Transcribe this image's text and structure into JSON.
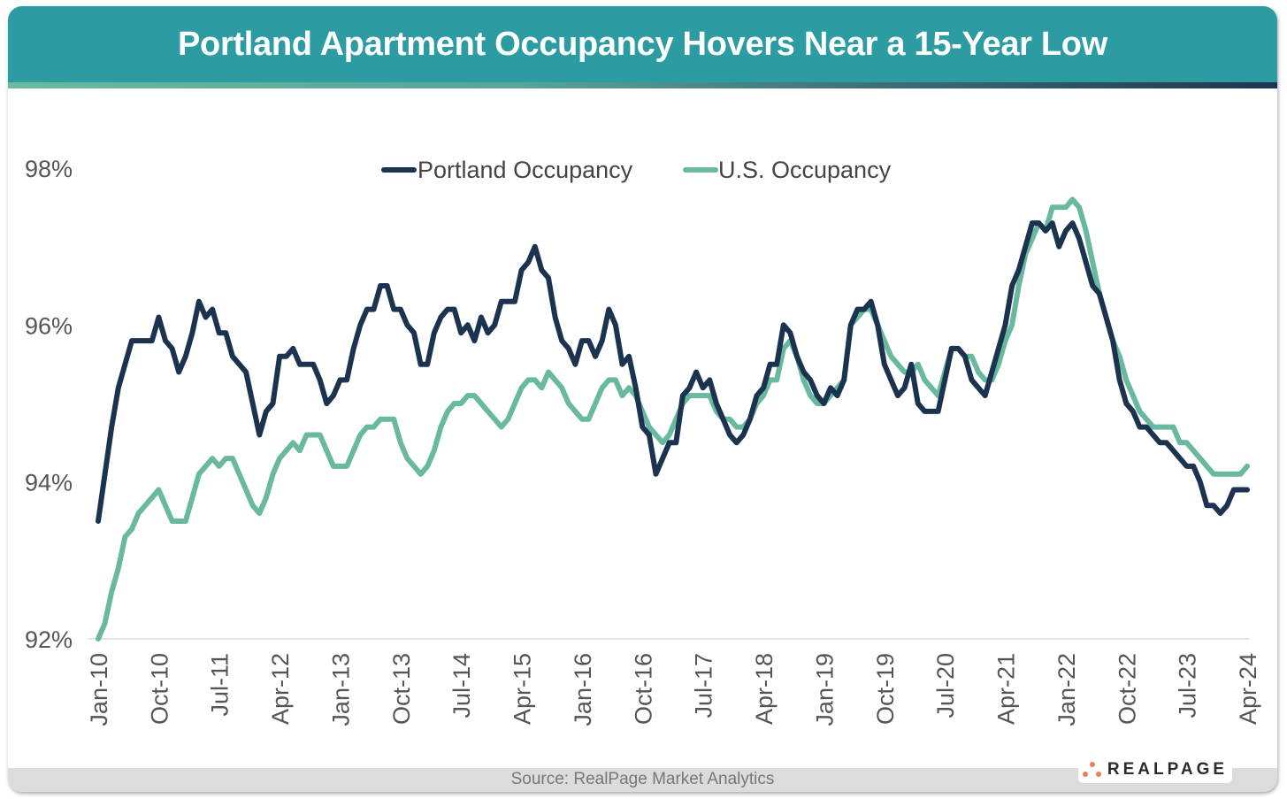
{
  "title": "Portland Apartment Occupancy Hovers Near a 15-Year Low",
  "source": "Source: RealPage Market Analytics",
  "logo_text": "REALPAGE",
  "colors": {
    "header": "#2c9ca2",
    "portland": "#1c3350",
    "us": "#68b9a0",
    "logo_accent": "#ee7d56"
  },
  "chart_data": {
    "type": "line",
    "title": "",
    "xlabel": "",
    "ylabel": "",
    "x_frequency": "monthly",
    "x_range": [
      "Jan-10",
      "Apr-24"
    ],
    "x_tick_labels": [
      "Jan-10",
      "Oct-10",
      "Jul-11",
      "Apr-12",
      "Jan-13",
      "Oct-13",
      "Jul-14",
      "Apr-15",
      "Jan-16",
      "Oct-16",
      "Jul-17",
      "Apr-18",
      "Jan-19",
      "Oct-19",
      "Jul-20",
      "Apr-21",
      "Jan-22",
      "Oct-22",
      "Jul-23",
      "Apr-24"
    ],
    "y_tick_labels": [
      "92%",
      "94%",
      "96%",
      "98%"
    ],
    "ylim": [
      92,
      98
    ],
    "y_unit": "%",
    "grid": false,
    "legend_position": "top",
    "series": [
      {
        "name": "Portland Occupancy",
        "color": "#1c3350",
        "values": [
          93.5,
          94.1,
          94.7,
          95.2,
          95.5,
          95.8,
          95.8,
          95.8,
          95.8,
          96.1,
          95.8,
          95.7,
          95.4,
          95.6,
          95.9,
          96.3,
          96.1,
          96.2,
          95.9,
          95.9,
          95.6,
          95.5,
          95.4,
          95.0,
          94.6,
          94.9,
          95.0,
          95.6,
          95.6,
          95.7,
          95.5,
          95.5,
          95.5,
          95.3,
          95.0,
          95.1,
          95.3,
          95.3,
          95.7,
          96.0,
          96.2,
          96.2,
          96.5,
          96.5,
          96.2,
          96.2,
          96.0,
          95.9,
          95.5,
          95.5,
          95.9,
          96.1,
          96.2,
          96.2,
          95.9,
          96.0,
          95.8,
          96.1,
          95.9,
          96.0,
          96.3,
          96.3,
          96.3,
          96.7,
          96.8,
          97.0,
          96.7,
          96.6,
          96.1,
          95.8,
          95.7,
          95.5,
          95.8,
          95.8,
          95.6,
          95.8,
          96.2,
          96.0,
          95.5,
          95.6,
          95.2,
          94.7,
          94.6,
          94.1,
          94.3,
          94.5,
          94.5,
          95.1,
          95.2,
          95.4,
          95.2,
          95.3,
          95.0,
          94.8,
          94.6,
          94.5,
          94.6,
          94.8,
          95.1,
          95.2,
          95.5,
          95.5,
          96.0,
          95.9,
          95.6,
          95.4,
          95.3,
          95.1,
          95.0,
          95.2,
          95.1,
          95.3,
          96.0,
          96.2,
          96.2,
          96.3,
          96.0,
          95.5,
          95.3,
          95.1,
          95.2,
          95.5,
          95.0,
          94.9,
          94.9,
          94.9,
          95.3,
          95.7,
          95.7,
          95.6,
          95.3,
          95.2,
          95.1,
          95.4,
          95.7,
          96.0,
          96.5,
          96.7,
          97.0,
          97.3,
          97.3,
          97.2,
          97.3,
          97.0,
          97.2,
          97.3,
          97.1,
          96.8,
          96.5,
          96.4,
          96.1,
          95.8,
          95.3,
          95.0,
          94.9,
          94.7,
          94.7,
          94.6,
          94.5,
          94.5,
          94.4,
          94.3,
          94.2,
          94.2,
          94.0,
          93.7,
          93.7,
          93.6,
          93.7,
          93.9,
          93.9,
          93.9
        ]
      },
      {
        "name": "U.S. Occupancy",
        "color": "#68b9a0",
        "values": [
          92.0,
          92.2,
          92.6,
          92.9,
          93.3,
          93.4,
          93.6,
          93.7,
          93.8,
          93.9,
          93.7,
          93.5,
          93.5,
          93.5,
          93.8,
          94.1,
          94.2,
          94.3,
          94.2,
          94.3,
          94.3,
          94.1,
          93.9,
          93.7,
          93.6,
          93.8,
          94.1,
          94.3,
          94.4,
          94.5,
          94.4,
          94.6,
          94.6,
          94.6,
          94.4,
          94.2,
          94.2,
          94.2,
          94.4,
          94.6,
          94.7,
          94.7,
          94.8,
          94.8,
          94.8,
          94.5,
          94.3,
          94.2,
          94.1,
          94.2,
          94.4,
          94.7,
          94.9,
          95.0,
          95.0,
          95.1,
          95.1,
          95.0,
          94.9,
          94.8,
          94.7,
          94.8,
          95.0,
          95.2,
          95.3,
          95.3,
          95.2,
          95.4,
          95.3,
          95.2,
          95.0,
          94.9,
          94.8,
          94.8,
          95.0,
          95.2,
          95.3,
          95.3,
          95.1,
          95.2,
          95.1,
          94.9,
          94.7,
          94.6,
          94.5,
          94.6,
          94.8,
          95.0,
          95.1,
          95.1,
          95.1,
          95.1,
          94.9,
          94.8,
          94.8,
          94.7,
          94.7,
          94.8,
          95.0,
          95.1,
          95.3,
          95.3,
          95.7,
          95.8,
          95.6,
          95.3,
          95.1,
          95.0,
          95.0,
          95.1,
          95.2,
          95.3,
          96.0,
          96.1,
          96.2,
          96.2,
          96.0,
          95.8,
          95.6,
          95.5,
          95.4,
          95.4,
          95.5,
          95.3,
          95.2,
          95.1,
          95.4,
          95.7,
          95.7,
          95.6,
          95.6,
          95.4,
          95.3,
          95.3,
          95.5,
          95.8,
          96.0,
          96.5,
          96.9,
          97.1,
          97.3,
          97.2,
          97.5,
          97.5,
          97.5,
          97.6,
          97.5,
          97.2,
          96.8,
          96.4,
          96.1,
          95.8,
          95.6,
          95.3,
          95.1,
          94.9,
          94.8,
          94.7,
          94.7,
          94.7,
          94.7,
          94.5,
          94.5,
          94.4,
          94.3,
          94.2,
          94.1,
          94.1,
          94.1,
          94.1,
          94.1,
          94.2
        ]
      }
    ]
  }
}
